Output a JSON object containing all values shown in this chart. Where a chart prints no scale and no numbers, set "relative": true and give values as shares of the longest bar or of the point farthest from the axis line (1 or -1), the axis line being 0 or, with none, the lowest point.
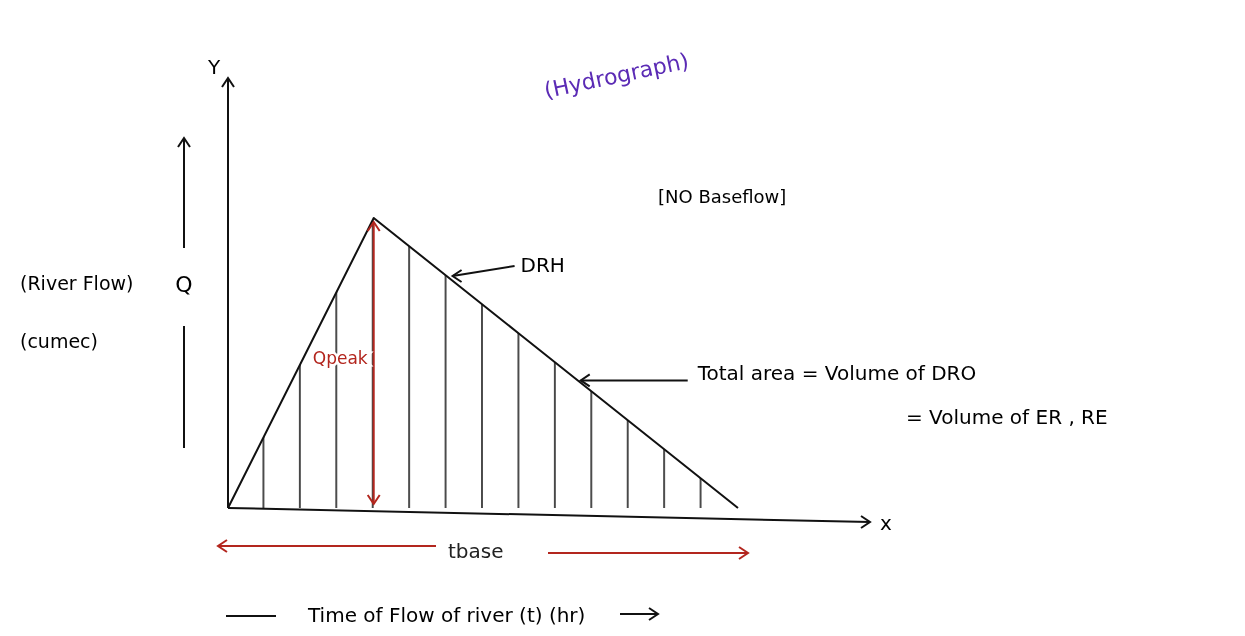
{
  "chart_data": {
    "type": "area",
    "relative": true,
    "title": "(Hydrograph)",
    "ylabel": "Q",
    "xlabel": "Time of Flow of river (t) (hr)",
    "categories": [
      null,
      null,
      null,
      null,
      null,
      null,
      null,
      null
    ],
    "series": [
      {
        "color": "#111111",
        "values": [
          0,
          0.5,
          1,
          0.8,
          0.6,
          0.4,
          0.2,
          0
        ]
      }
    ],
    "annotations": [
      "[NO Baseflow]",
      "DRH",
      "Qpeak",
      "Total area = Volume of DRO",
      "= Volume of ER , RE",
      "tbase",
      "(River Flow)",
      "(cumec)",
      "Y",
      "x"
    ]
  }
}
